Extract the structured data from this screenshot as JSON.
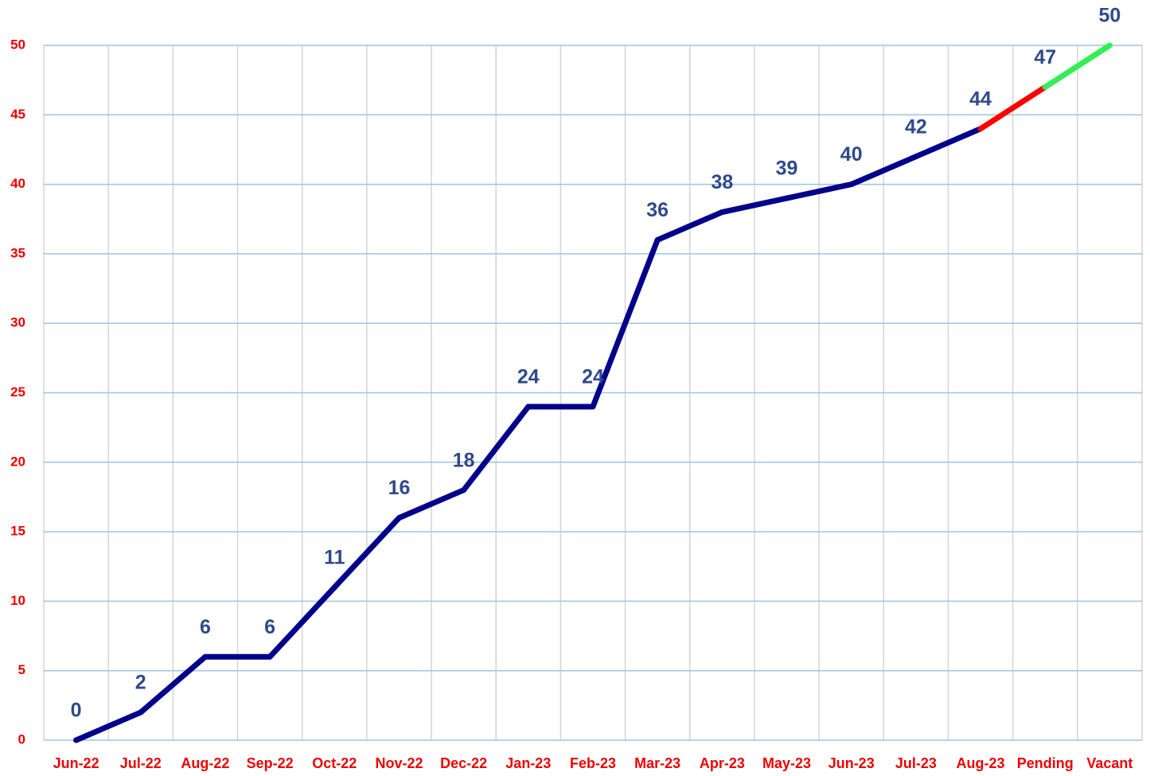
{
  "chart_data": {
    "type": "line",
    "categories": [
      "Jun-22",
      "Jul-22",
      "Aug-22",
      "Sep-22",
      "Oct-22",
      "Nov-22",
      "Dec-22",
      "Jan-23",
      "Feb-23",
      "Mar-23",
      "Apr-23",
      "May-23",
      "Jun-23",
      "Jul-23",
      "Aug-23",
      "Pending",
      "Vacant"
    ],
    "values": [
      0,
      2,
      6,
      6,
      11,
      16,
      18,
      24,
      24,
      36,
      38,
      39,
      40,
      42,
      44,
      47,
      50
    ],
    "segment_colors": [
      "#00008b",
      "#00008b",
      "#00008b",
      "#00008b",
      "#00008b",
      "#00008b",
      "#00008b",
      "#00008b",
      "#00008b",
      "#00008b",
      "#00008b",
      "#00008b",
      "#00008b",
      "#00008b",
      "#ff0000",
      "#33ee55"
    ],
    "ylim": [
      0,
      50
    ],
    "yticks": [
      0,
      5,
      10,
      15,
      20,
      25,
      30,
      35,
      40,
      45,
      50
    ],
    "grid": true
  }
}
